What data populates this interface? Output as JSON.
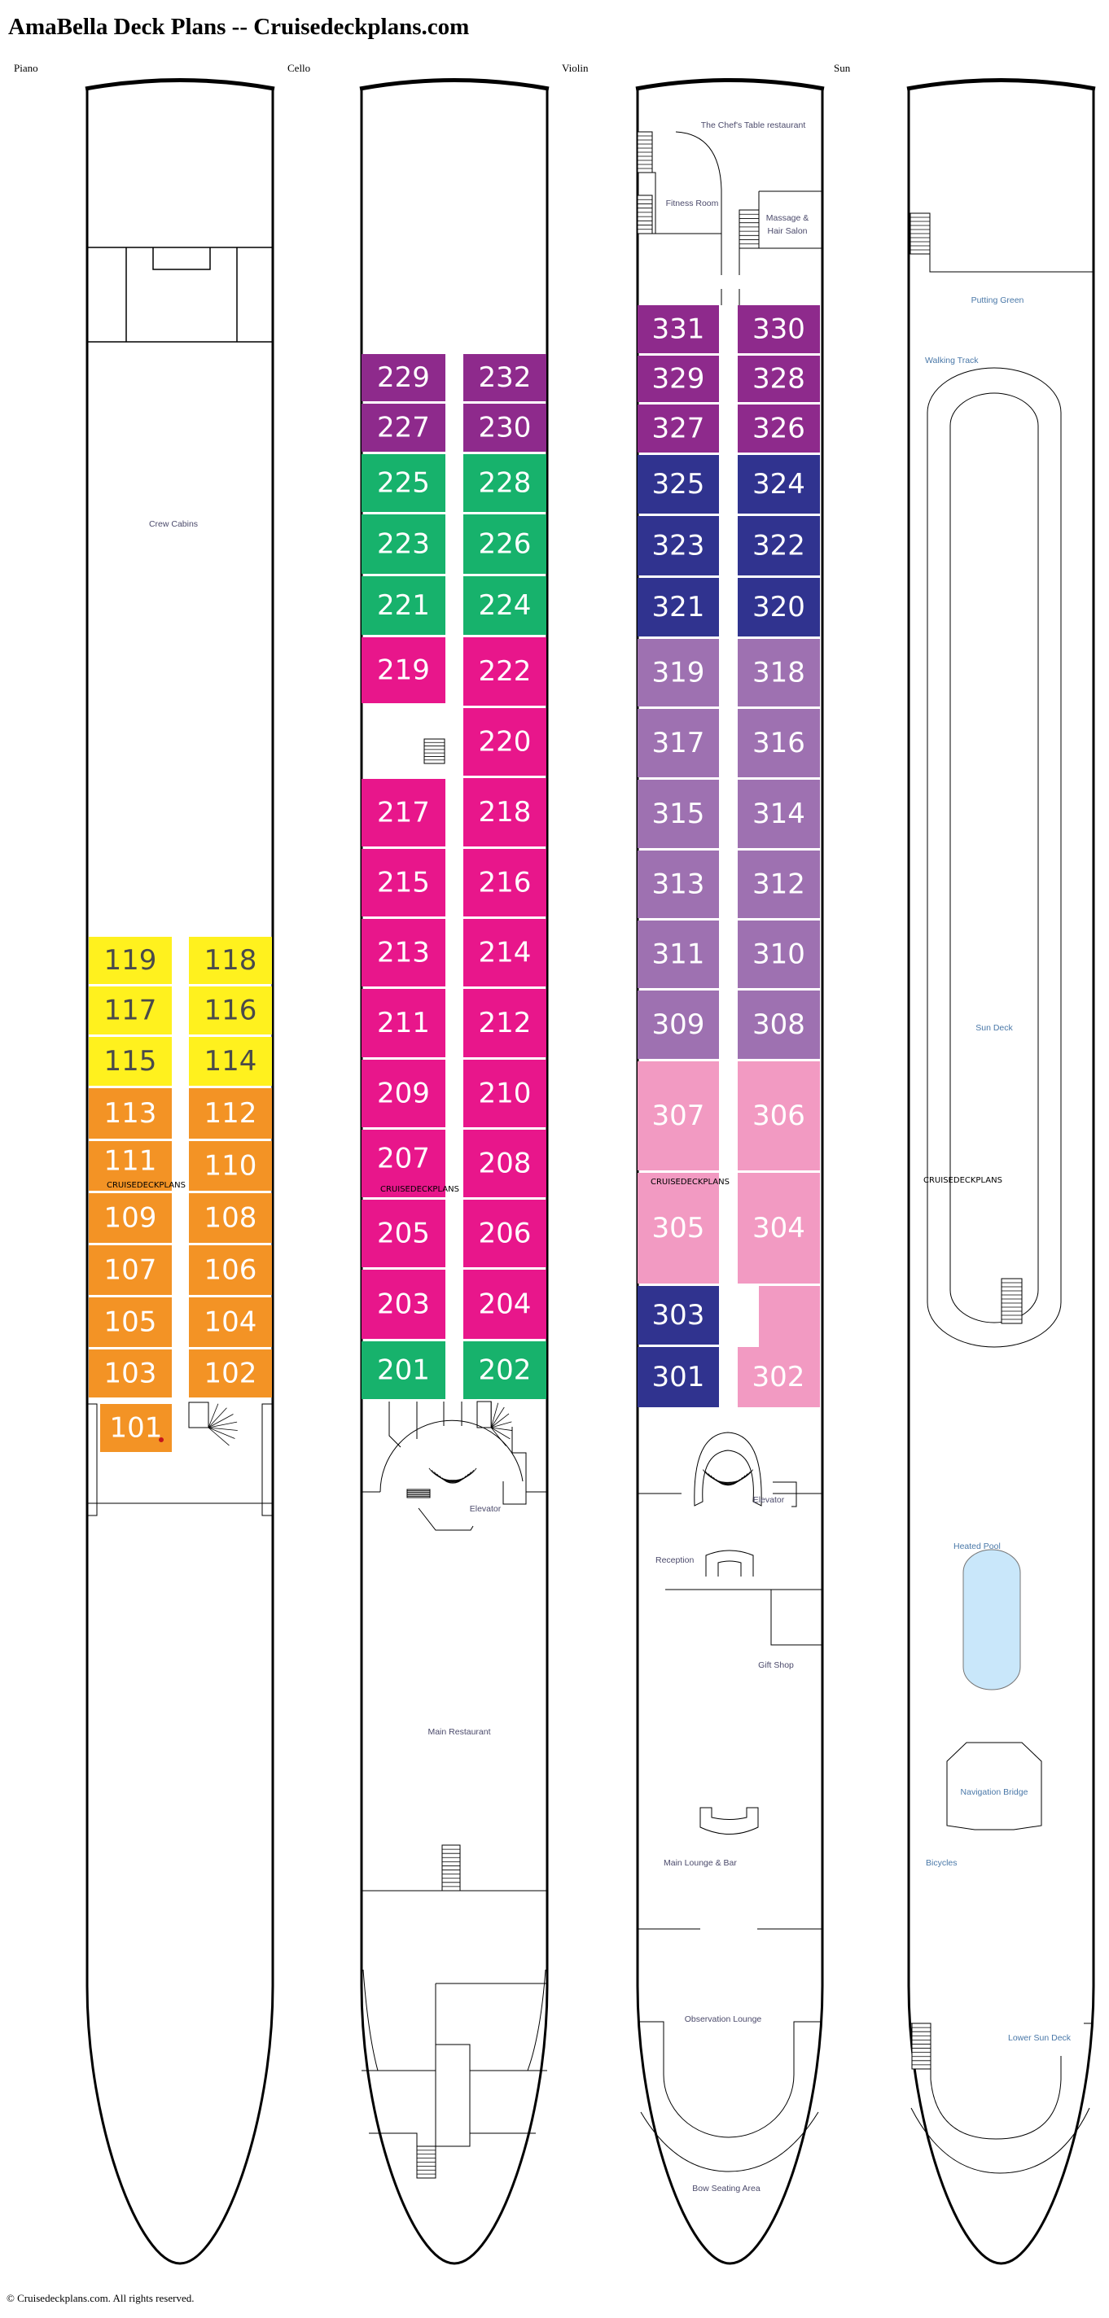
{
  "title": "AmaBella Deck Plans -- Cruisedeckplans.com",
  "watermark": "CRUISEDECKPLANS",
  "footer": "© Cruisedeckplans.com. All rights reserved.",
  "colors": {
    "yellow": "#fff11e",
    "orange": "#f39325",
    "magenta": "#e8168b",
    "green": "#17b26c",
    "purple": "#8e2a8c",
    "navy": "#30338f",
    "lavender": "#9e71b1",
    "pink": "#f29ac2",
    "pool": "#c9e7fa",
    "room_text": "#4b4a6b",
    "sun_text": "#4a78a8"
  },
  "decks": {
    "piano": {
      "label": "Piano",
      "rooms": {
        "crew_cabins": "Crew Cabins"
      },
      "cabins": [
        {
          "no": "119",
          "cat": "yellow"
        },
        {
          "no": "118",
          "cat": "yellow"
        },
        {
          "no": "117",
          "cat": "yellow"
        },
        {
          "no": "116",
          "cat": "yellow"
        },
        {
          "no": "115",
          "cat": "yellow"
        },
        {
          "no": "114",
          "cat": "yellow"
        },
        {
          "no": "113",
          "cat": "orange"
        },
        {
          "no": "112",
          "cat": "orange"
        },
        {
          "no": "111",
          "cat": "orange"
        },
        {
          "no": "110",
          "cat": "orange"
        },
        {
          "no": "109",
          "cat": "orange"
        },
        {
          "no": "108",
          "cat": "orange"
        },
        {
          "no": "107",
          "cat": "orange"
        },
        {
          "no": "106",
          "cat": "orange"
        },
        {
          "no": "105",
          "cat": "orange"
        },
        {
          "no": "104",
          "cat": "orange"
        },
        {
          "no": "103",
          "cat": "orange"
        },
        {
          "no": "102",
          "cat": "orange"
        },
        {
          "no": "101",
          "cat": "orange"
        }
      ]
    },
    "cello": {
      "label": "Cello",
      "rooms": {
        "elevator": "Elevator",
        "main_restaurant": "Main Restaurant"
      },
      "cabins": [
        {
          "no": "229",
          "cat": "purple"
        },
        {
          "no": "232",
          "cat": "purple"
        },
        {
          "no": "227",
          "cat": "purple"
        },
        {
          "no": "230",
          "cat": "purple"
        },
        {
          "no": "225",
          "cat": "green"
        },
        {
          "no": "228",
          "cat": "green"
        },
        {
          "no": "223",
          "cat": "green"
        },
        {
          "no": "226",
          "cat": "green"
        },
        {
          "no": "221",
          "cat": "green"
        },
        {
          "no": "224",
          "cat": "green"
        },
        {
          "no": "219",
          "cat": "magenta"
        },
        {
          "no": "222",
          "cat": "magenta"
        },
        {
          "no": "220",
          "cat": "magenta"
        },
        {
          "no": "217",
          "cat": "magenta"
        },
        {
          "no": "218",
          "cat": "magenta"
        },
        {
          "no": "215",
          "cat": "magenta"
        },
        {
          "no": "216",
          "cat": "magenta"
        },
        {
          "no": "213",
          "cat": "magenta"
        },
        {
          "no": "214",
          "cat": "magenta"
        },
        {
          "no": "211",
          "cat": "magenta"
        },
        {
          "no": "212",
          "cat": "magenta"
        },
        {
          "no": "209",
          "cat": "magenta"
        },
        {
          "no": "210",
          "cat": "magenta"
        },
        {
          "no": "207",
          "cat": "magenta"
        },
        {
          "no": "208",
          "cat": "magenta"
        },
        {
          "no": "205",
          "cat": "magenta"
        },
        {
          "no": "206",
          "cat": "magenta"
        },
        {
          "no": "203",
          "cat": "magenta"
        },
        {
          "no": "204",
          "cat": "magenta"
        },
        {
          "no": "201",
          "cat": "green"
        },
        {
          "no": "202",
          "cat": "green"
        }
      ]
    },
    "violin": {
      "label": "Violin",
      "rooms": {
        "chefs_table": "The Chef's Table restaurant",
        "fitness_room": "Fitness Room",
        "massage_1": "Massage &",
        "massage_2": "Hair Salon",
        "elevator": "Elevator",
        "reception": "Reception",
        "gift_shop": "Gift Shop",
        "main_lounge": "Main Lounge & Bar",
        "observation_lounge": "Observation Lounge",
        "bow_seating": "Bow Seating Area"
      },
      "cabins": [
        {
          "no": "331",
          "cat": "purple"
        },
        {
          "no": "330",
          "cat": "purple"
        },
        {
          "no": "329",
          "cat": "purple"
        },
        {
          "no": "328",
          "cat": "purple"
        },
        {
          "no": "327",
          "cat": "purple"
        },
        {
          "no": "326",
          "cat": "purple"
        },
        {
          "no": "325",
          "cat": "navy"
        },
        {
          "no": "324",
          "cat": "navy"
        },
        {
          "no": "323",
          "cat": "navy"
        },
        {
          "no": "322",
          "cat": "navy"
        },
        {
          "no": "321",
          "cat": "navy"
        },
        {
          "no": "320",
          "cat": "navy"
        },
        {
          "no": "319",
          "cat": "lavender"
        },
        {
          "no": "318",
          "cat": "lavender"
        },
        {
          "no": "317",
          "cat": "lavender"
        },
        {
          "no": "316",
          "cat": "lavender"
        },
        {
          "no": "315",
          "cat": "lavender"
        },
        {
          "no": "314",
          "cat": "lavender"
        },
        {
          "no": "313",
          "cat": "lavender"
        },
        {
          "no": "312",
          "cat": "lavender"
        },
        {
          "no": "311",
          "cat": "lavender"
        },
        {
          "no": "310",
          "cat": "lavender"
        },
        {
          "no": "309",
          "cat": "lavender"
        },
        {
          "no": "308",
          "cat": "lavender"
        },
        {
          "no": "307",
          "cat": "pink"
        },
        {
          "no": "306",
          "cat": "pink"
        },
        {
          "no": "305",
          "cat": "pink"
        },
        {
          "no": "304",
          "cat": "pink"
        },
        {
          "no": "303",
          "cat": "navy"
        },
        {
          "no": "301",
          "cat": "navy"
        },
        {
          "no": "302",
          "cat": "pink"
        }
      ]
    },
    "sun": {
      "label": "Sun",
      "rooms": {
        "putting_green": "Putting Green",
        "walking_track": "Walking Track",
        "sun_deck": "Sun Deck",
        "heated_pool": "Heated Pool",
        "navigation_bridge": "Navigation Bridge",
        "bicycles": "Bicycles",
        "lower_sun_deck": "Lower Sun Deck"
      }
    }
  }
}
